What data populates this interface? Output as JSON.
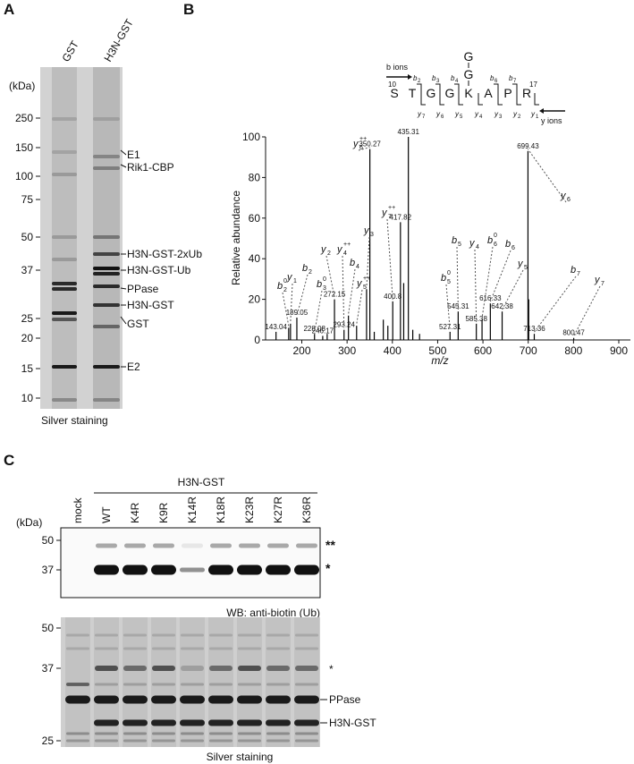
{
  "panel_a": {
    "label": "A",
    "lanes": [
      "GST",
      "H3N-GST"
    ],
    "unit": "(kDa)",
    "markers": [
      250,
      150,
      100,
      75,
      50,
      37,
      25,
      20,
      15,
      10
    ],
    "bands": [
      "E1",
      "Rik1-CBP",
      "H3N-GST-2xUb",
      "H3N-GST-Ub",
      "PPase",
      "H3N-GST",
      "GST",
      "E2"
    ],
    "caption": "Silver staining"
  },
  "panel_b": {
    "label": "B",
    "peptide": {
      "residues": [
        "S",
        "T",
        "G",
        "G",
        "K",
        "A",
        "P",
        "R"
      ],
      "branch": [
        "G",
        "G"
      ],
      "start": "10",
      "end": "17",
      "b_label": "b ions",
      "y_label": "y ions",
      "b_ions": [
        {
          "base": "b",
          "sub": "2"
        },
        {
          "base": "b",
          "sub": "3"
        },
        {
          "base": "b",
          "sub": "4"
        },
        {
          "base": "b",
          "sub": "6"
        },
        {
          "base": "b",
          "sub": "7"
        }
      ],
      "y_ions": [
        {
          "base": "y",
          "sub": "7"
        },
        {
          "base": "y",
          "sub": "6"
        },
        {
          "base": "y",
          "sub": "5"
        },
        {
          "base": "y",
          "sub": "4"
        },
        {
          "base": "y",
          "sub": "3"
        },
        {
          "base": "y",
          "sub": "2"
        },
        {
          "base": "y",
          "sub": "1"
        }
      ]
    }
  },
  "chart_data": {
    "type": "bar",
    "x_label": "m/z",
    "y_label": "Relative abundance",
    "color": "#000000",
    "xlim": [
      120,
      900
    ],
    "ylim": [
      0,
      100
    ],
    "xticks": [
      200,
      300,
      400,
      500,
      600,
      700,
      800,
      900
    ],
    "yticks": [
      0,
      20,
      40,
      60,
      80,
      100
    ],
    "peaks": [
      {
        "x": 143.04,
        "y": 4
      },
      {
        "x": 189.05,
        "y": 11,
        "ion": {
          "base": "b",
          "sub": "2"
        }
      },
      {
        "x": 228.08,
        "y": 3,
        "ion": {
          "base": "b",
          "sub": "3",
          "sup": "0"
        }
      },
      {
        "x": 246.17,
        "y": 2
      },
      {
        "x": 272.15,
        "y": 20,
        "ion": {
          "base": "y",
          "sub": "2"
        }
      },
      {
        "x": 293.24,
        "y": 5,
        "ion": {
          "base": "y",
          "sub": "4",
          "sup": "++"
        }
      },
      {
        "x": 350.27,
        "y": 94,
        "ion": {
          "base": "y",
          "sub": "6",
          "sup": "++"
        }
      },
      {
        "x": 400.8,
        "y": 19,
        "ion": {
          "base": "y",
          "sub": "7",
          "sup": "++"
        }
      },
      {
        "x": 417.82,
        "y": 58
      },
      {
        "x": 435.31,
        "y": 100
      },
      {
        "x": 527.31,
        "y": 4,
        "ion": {
          "base": "b",
          "sub": "5",
          "sup": "0"
        }
      },
      {
        "x": 545.31,
        "y": 14,
        "ion": {
          "base": "b",
          "sub": "5"
        }
      },
      {
        "x": 585.38,
        "y": 8,
        "ion": {
          "base": "y",
          "sub": "4"
        }
      },
      {
        "x": 616.33,
        "y": 18,
        "ion": {
          "base": "b",
          "sub": "6"
        }
      },
      {
        "x": 642.38,
        "y": 14,
        "ion": {
          "base": "y",
          "sub": "5"
        }
      },
      {
        "x": 699.43,
        "y": 93,
        "ion": {
          "base": "y",
          "sub": "6"
        }
      },
      {
        "x": 713.36,
        "y": 3,
        "ion": {
          "base": "b",
          "sub": "7"
        }
      },
      {
        "x": 800.47,
        "y": 1,
        "ion": {
          "base": "y",
          "sub": "7"
        }
      }
    ],
    "minor_peaks": [
      {
        "x": 171,
        "y": 6,
        "ion": {
          "base": "b",
          "sub": "2",
          "sup": "0"
        }
      },
      {
        "x": 175,
        "y": 8,
        "ion": {
          "base": "y",
          "sub": "1"
        }
      },
      {
        "x": 303,
        "y": 12,
        "ion": {
          "base": "b",
          "sub": "4"
        }
      },
      {
        "x": 321,
        "y": 7,
        "ion": {
          "base": "y",
          "sub": "5",
          "sup": "++"
        }
      },
      {
        "x": 343,
        "y": 25,
        "ion": {
          "base": "y",
          "sub": "3"
        }
      },
      {
        "x": 598,
        "y": 10,
        "ion": {
          "base": "b",
          "sub": "6",
          "sup": "0"
        }
      },
      {
        "x": 701,
        "y": 20
      },
      {
        "x": 256,
        "y": 3
      },
      {
        "x": 360,
        "y": 4
      },
      {
        "x": 380,
        "y": 10
      },
      {
        "x": 390,
        "y": 7
      },
      {
        "x": 425,
        "y": 28
      },
      {
        "x": 445,
        "y": 5
      },
      {
        "x": 460,
        "y": 3
      }
    ]
  },
  "panel_c": {
    "label": "C",
    "group": "H3N-GST",
    "lanes": [
      "mock",
      "WT",
      "K4R",
      "K9R",
      "K14R",
      "K18R",
      "K23R",
      "K27R",
      "K36R"
    ],
    "unit": "(kDa)",
    "blot": {
      "markers": [
        50,
        37
      ],
      "marks": [
        "**",
        "*"
      ],
      "caption": "WB: anti-biotin (Ub)"
    },
    "gel": {
      "markers": [
        50,
        37,
        25
      ],
      "bands": [
        "*",
        "PPase",
        "H3N-GST"
      ],
      "caption": "Silver staining"
    }
  }
}
